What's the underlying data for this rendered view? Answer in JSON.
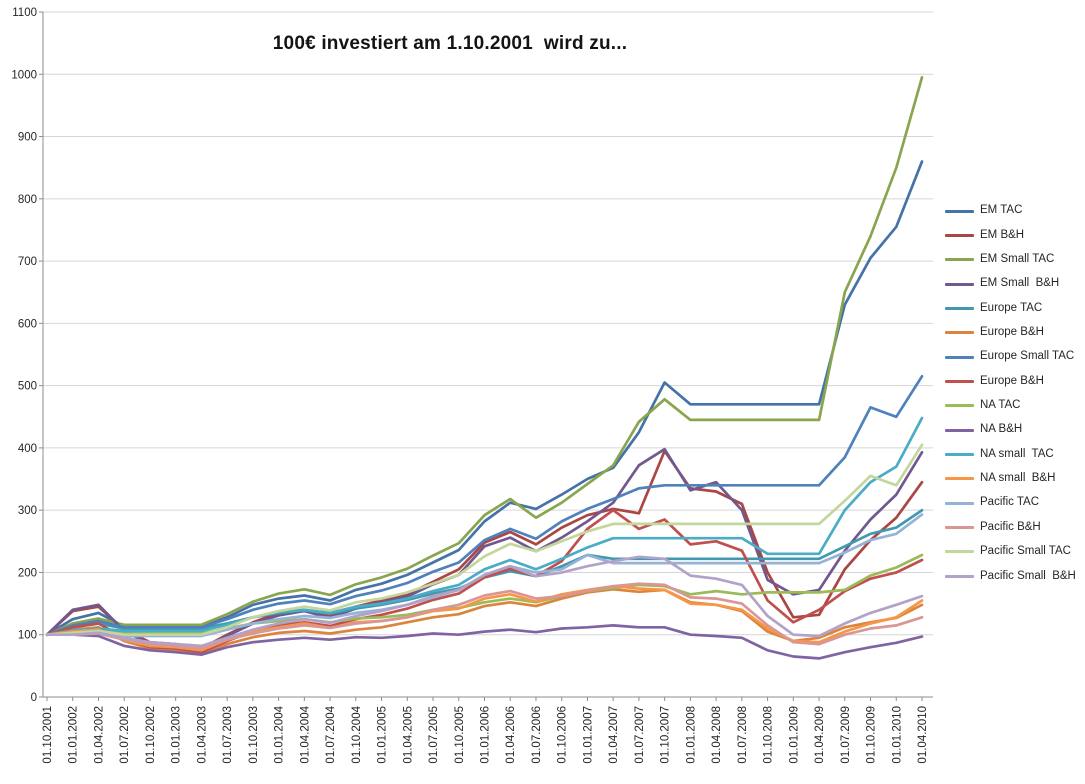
{
  "title": "100€ investiert am 1.10.2001  wird zu...",
  "chart_data": {
    "type": "line",
    "title": "100€ investiert am 1.10.2001  wird zu...",
    "xlabel": "",
    "ylabel": "",
    "ylim": [
      0,
      1100
    ],
    "y_ticks": [
      0,
      100,
      200,
      300,
      400,
      500,
      600,
      700,
      800,
      900,
      1000,
      1100
    ],
    "grid": "horizontal",
    "legend_position": "right",
    "x_labels": [
      "01.10.2001",
      "01.01.2002",
      "01.04.2002",
      "01.07.2002",
      "01.10.2002",
      "01.01.2003",
      "01.04.2003",
      "01.07.2003",
      "01.10.2003",
      "01.01.2004",
      "01.04.2004",
      "01.07.2004",
      "01.10.2004",
      "01.01.2005",
      "01.04.2005",
      "01.07.2005",
      "01.10.2005",
      "01.01.2006",
      "01.04.2006",
      "01.07.2006",
      "01.10.2006",
      "01.01.2007",
      "01.04.2007",
      "01.07.2007",
      "01.10.2007",
      "01.01.2008",
      "01.04.2008",
      "01.07.2008",
      "01.10.2008",
      "01.01.2009",
      "01.04.2009",
      "01.07.2009",
      "01.10.2009",
      "01.01.2010",
      "01.04.2010"
    ],
    "series": [
      {
        "name": "EM TAC",
        "color": "#4572A7",
        "values": [
          100,
          125,
          135,
          113,
          113,
          113,
          113,
          128,
          148,
          158,
          163,
          155,
          172,
          182,
          196,
          216,
          236,
          282,
          312,
          302,
          325,
          350,
          368,
          425,
          505,
          470,
          470,
          470,
          470,
          470,
          470,
          630,
          705,
          755,
          860
        ]
      },
      {
        "name": "EM B&H",
        "color": "#AA4643",
        "values": [
          100,
          138,
          145,
          108,
          88,
          85,
          78,
          100,
          120,
          135,
          140,
          130,
          145,
          155,
          165,
          185,
          205,
          248,
          265,
          245,
          272,
          292,
          302,
          295,
          395,
          335,
          330,
          310,
          200,
          128,
          132,
          205,
          252,
          288,
          345
        ]
      },
      {
        "name": "EM Small TAC",
        "color": "#89A54E",
        "values": [
          100,
          118,
          126,
          116,
          116,
          116,
          116,
          133,
          153,
          166,
          173,
          164,
          181,
          192,
          206,
          227,
          247,
          292,
          318,
          288,
          312,
          342,
          372,
          442,
          478,
          445,
          445,
          445,
          445,
          445,
          445,
          650,
          740,
          850,
          995
        ]
      },
      {
        "name": "EM Small  B&H",
        "color": "#71588F",
        "values": [
          100,
          140,
          148,
          106,
          85,
          80,
          75,
          98,
          118,
          131,
          138,
          127,
          142,
          152,
          161,
          181,
          196,
          242,
          256,
          234,
          256,
          282,
          312,
          372,
          398,
          332,
          345,
          300,
          188,
          165,
          172,
          235,
          285,
          325,
          393
        ]
      },
      {
        "name": "Europe TAC",
        "color": "#4198AF",
        "values": [
          100,
          112,
          118,
          110,
          110,
          110,
          110,
          118,
          128,
          135,
          139,
          134,
          142,
          148,
          156,
          166,
          174,
          192,
          202,
          194,
          210,
          228,
          222,
          222,
          222,
          222,
          222,
          222,
          222,
          222,
          222,
          242,
          262,
          272,
          300
        ]
      },
      {
        "name": "Europe B&H",
        "color": "#DB843D",
        "values": [
          100,
          108,
          112,
          90,
          78,
          75,
          70,
          85,
          96,
          103,
          106,
          102,
          108,
          112,
          120,
          128,
          133,
          146,
          152,
          146,
          158,
          168,
          173,
          169,
          172,
          152,
          148,
          138,
          105,
          90,
          95,
          112,
          120,
          127,
          148
        ]
      },
      {
        "name": "Europe Small TAC",
        "color": "#4F81BD",
        "values": [
          100,
          115,
          122,
          112,
          112,
          112,
          112,
          125,
          140,
          150,
          155,
          149,
          162,
          171,
          183,
          201,
          216,
          252,
          270,
          254,
          282,
          302,
          318,
          335,
          340,
          340,
          340,
          340,
          340,
          340,
          340,
          385,
          465,
          450,
          515
        ]
      },
      {
        "name": "Europe B&H",
        "color": "#C0504D",
        "values": [
          100,
          112,
          118,
          95,
          80,
          78,
          72,
          90,
          105,
          115,
          120,
          114,
          125,
          132,
          142,
          156,
          166,
          192,
          206,
          194,
          218,
          270,
          300,
          270,
          285,
          245,
          250,
          235,
          155,
          120,
          140,
          170,
          190,
          200,
          220
        ]
      },
      {
        "name": "NA TAC",
        "color": "#9BBB59",
        "values": [
          100,
          104,
          107,
          102,
          102,
          102,
          102,
          110,
          118,
          122,
          125,
          120,
          126,
          128,
          132,
          140,
          143,
          152,
          158,
          152,
          162,
          170,
          175,
          180,
          178,
          165,
          170,
          165,
          168,
          168,
          168,
          172,
          195,
          208,
          228
        ]
      },
      {
        "name": "NA B&H",
        "color": "#8064A2",
        "values": [
          100,
          100,
          98,
          82,
          75,
          72,
          68,
          80,
          88,
          92,
          95,
          92,
          96,
          95,
          98,
          102,
          100,
          105,
          108,
          104,
          110,
          112,
          115,
          112,
          112,
          100,
          98,
          95,
          75,
          65,
          62,
          72,
          80,
          87,
          97
        ]
      },
      {
        "name": "NA small  TAC",
        "color": "#4BACC6",
        "values": [
          100,
          107,
          110,
          106,
          106,
          106,
          106,
          116,
          128,
          136,
          140,
          135,
          145,
          150,
          158,
          170,
          180,
          205,
          220,
          205,
          222,
          240,
          255,
          255,
          255,
          255,
          255,
          255,
          230,
          230,
          230,
          300,
          345,
          370,
          448
        ]
      },
      {
        "name": "NA small  B&H",
        "color": "#F79646",
        "values": [
          100,
          105,
          108,
          92,
          82,
          80,
          75,
          92,
          105,
          112,
          118,
          111,
          120,
          122,
          128,
          138,
          142,
          158,
          165,
          153,
          165,
          172,
          178,
          174,
          172,
          150,
          148,
          140,
          110,
          90,
          88,
          105,
          118,
          128,
          155
        ]
      },
      {
        "name": "Pacific TAC",
        "color": "#95B3D7",
        "values": [
          100,
          102,
          105,
          98,
          98,
          98,
          98,
          108,
          118,
          125,
          130,
          127,
          135,
          140,
          148,
          160,
          172,
          196,
          210,
          200,
          205,
          228,
          215,
          215,
          215,
          215,
          215,
          215,
          215,
          215,
          215,
          232,
          252,
          262,
          293
        ]
      },
      {
        "name": "Pacific B&H",
        "color": "#D99694",
        "values": [
          100,
          100,
          102,
          92,
          85,
          82,
          78,
          92,
          102,
          110,
          115,
          111,
          118,
          122,
          128,
          140,
          148,
          163,
          170,
          158,
          162,
          170,
          178,
          182,
          180,
          160,
          158,
          150,
          115,
          88,
          85,
          100,
          110,
          115,
          128
        ]
      },
      {
        "name": "Pacific Small TAC",
        "color": "#C3D69B",
        "values": [
          100,
          103,
          106,
          100,
          100,
          100,
          100,
          112,
          128,
          138,
          145,
          139,
          152,
          158,
          168,
          182,
          196,
          226,
          246,
          234,
          250,
          266,
          278,
          278,
          278,
          278,
          278,
          278,
          278,
          278,
          278,
          315,
          355,
          340,
          405
        ]
      },
      {
        "name": "Pacific Small  B&H",
        "color": "#B3A2C7",
        "values": [
          100,
          100,
          103,
          95,
          88,
          85,
          82,
          95,
          108,
          118,
          125,
          119,
          130,
          138,
          148,
          162,
          172,
          196,
          210,
          194,
          200,
          210,
          218,
          225,
          222,
          195,
          190,
          180,
          130,
          100,
          98,
          118,
          135,
          148,
          162
        ]
      }
    ]
  },
  "style": {
    "grid_color": "#D6D6D6",
    "axis_color": "#8C8C8C",
    "tick_label_color": "#262626",
    "background": "#FFFFFF"
  }
}
